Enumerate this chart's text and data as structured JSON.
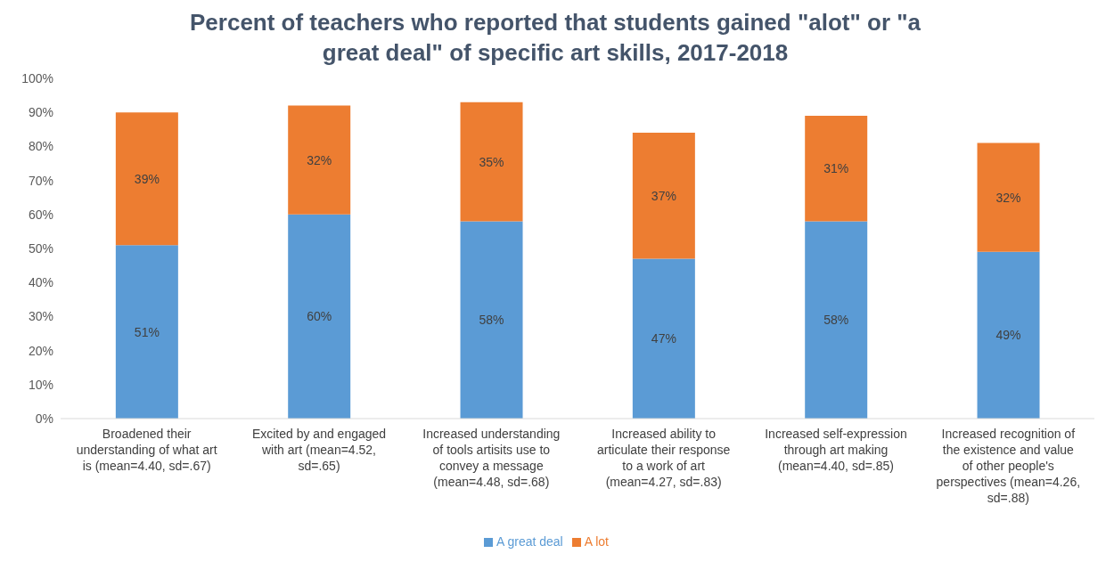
{
  "chart_data": {
    "type": "bar",
    "title": "Percent of teachers who reported that students gained \"alot\" or \"a great deal\" of specific art skills, 2017-2018",
    "categories": [
      "Broadened their understanding of what art is (mean=4.40, sd=.67)",
      "Excited by and engaged with art (mean=4.52, sd=.65)",
      "Increased understanding of tools artisits use to convey a message (mean=4.48, sd=.68)",
      "Increased ability to articulate their response to a work of art (mean=4.27, sd=.83)",
      "Increased self-expression through art making (mean=4.40, sd=.85)",
      "Increased recognition of the existence and value of other people's perspectives (mean=4.26, sd=.88)"
    ],
    "stacked": true,
    "series": [
      {
        "name": "A great deal",
        "color": "#5b9bd5",
        "values": [
          51,
          60,
          58,
          47,
          58,
          49
        ],
        "value_labels": [
          "51%",
          "60%",
          "58%",
          "47%",
          "58%",
          "49%"
        ]
      },
      {
        "name": "A lot",
        "color": "#ed7d31",
        "values": [
          39,
          32,
          35,
          37,
          31,
          32
        ],
        "value_labels": [
          "39%",
          "32%",
          "35%",
          "37%",
          "31%",
          "32%"
        ]
      }
    ],
    "ylim": [
      0,
      100
    ],
    "yticks": [
      {
        "value": 0,
        "label": "0%"
      },
      {
        "value": 10,
        "label": "10%"
      },
      {
        "value": 20,
        "label": "20%"
      },
      {
        "value": 30,
        "label": "30%"
      },
      {
        "value": 40,
        "label": "40%"
      },
      {
        "value": 50,
        "label": "50%"
      },
      {
        "value": 60,
        "label": "60%"
      },
      {
        "value": 70,
        "label": "70%"
      },
      {
        "value": 80,
        "label": "80%"
      },
      {
        "value": 90,
        "label": "90%"
      },
      {
        "value": 100,
        "label": "100%"
      }
    ],
    "legend": "bottom"
  }
}
